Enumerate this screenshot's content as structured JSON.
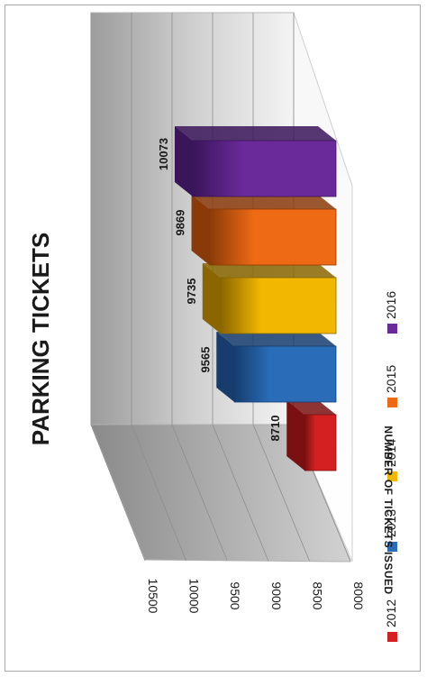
{
  "chart_data": {
    "type": "bar",
    "title": "PARKING TICKETS",
    "ylabel": "NUMBER OF TICKETS ISSUED",
    "xlabel": "",
    "categories": [
      "2012",
      "2013",
      "2014",
      "2015",
      "2016"
    ],
    "values": [
      8710,
      9565,
      9735,
      9869,
      10073
    ],
    "ylim": [
      8000,
      10500
    ],
    "yticks": [
      "8000",
      "8500",
      "9000",
      "9500",
      "10000",
      "10500"
    ],
    "grid": true,
    "style": "3d",
    "orientation": "rotated-90",
    "legend_position": "bottom",
    "colors": [
      "#d42020",
      "#2a6cb8",
      "#f2b700",
      "#ee6a14",
      "#6a2a9a"
    ],
    "dark_colors": [
      "#7a1010",
      "#163d6e",
      "#8a6500",
      "#8a3a08",
      "#3a155a"
    ]
  }
}
